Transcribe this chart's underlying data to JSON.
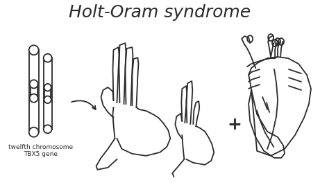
{
  "title": "Holt-Oram syndrome",
  "chromosome_label_1": "twelfth chromosome",
  "chromosome_label_2": "TBX5 gene",
  "bg_color": "#ffffff",
  "line_color": "#2a2a2a",
  "title_fontsize": 18,
  "label_fontsize": 6.5,
  "figsize": [
    4.61,
    2.8
  ],
  "dpi": 100
}
